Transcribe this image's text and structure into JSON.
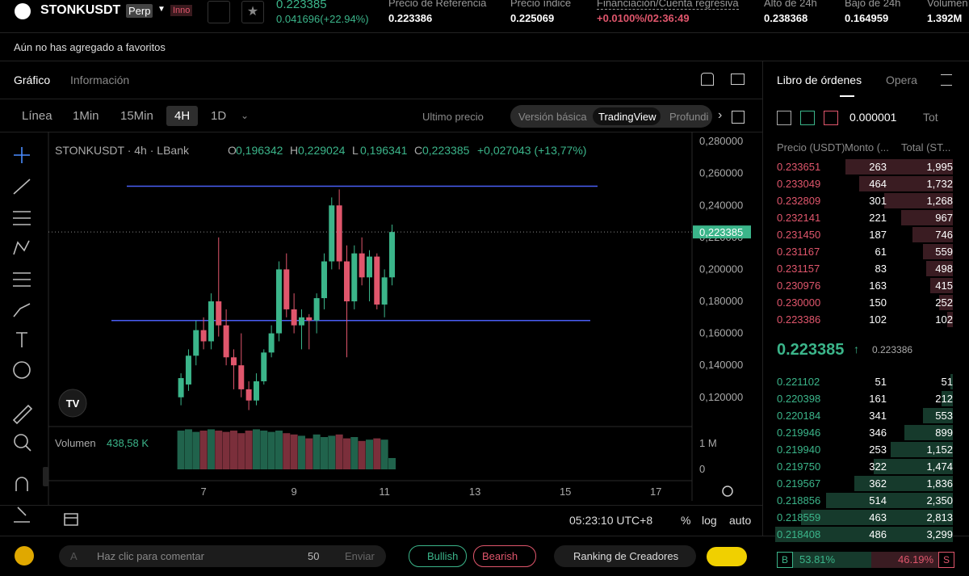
{
  "header": {
    "symbol": "STONKUSDT",
    "badge": "Perp",
    "tag": "Inno",
    "last_price": "0.223385",
    "change": "0.041696(+22.94%)",
    "stats": [
      {
        "label": "Precio de Referencia",
        "value": "0.223386"
      },
      {
        "label": "Precio índice",
        "value": "0.225069"
      },
      {
        "label": "Financiación/Cuenta regresiva",
        "value": "+0.0100%/02:36:49"
      },
      {
        "label": "Alto de 24h",
        "value": "0.238368"
      },
      {
        "label": "Bajo de 24h",
        "value": "0.164959"
      },
      {
        "label": "Volumen",
        "value": "1.392M"
      }
    ]
  },
  "favorites_note": "Aún no has agregado a favoritos",
  "tabs": [
    "Gráfico",
    "Información"
  ],
  "intervals": [
    "Línea",
    "1Min",
    "15Min",
    "4H",
    "1D"
  ],
  "price_type": "Ultimo precio",
  "view_modes": [
    "Versión básica",
    "TradingView",
    "Profundi"
  ],
  "chart_data": {
    "type": "candlestick",
    "title": "STONKUSDT · 4h · LBank",
    "ohlc_legend": [
      {
        "key": "O",
        "value": "0,196342"
      },
      {
        "key": "H",
        "value": "0,229024"
      },
      {
        "key": "L",
        "value": "0,196341"
      },
      {
        "key": "C",
        "value": "0,223385"
      }
    ],
    "change_label": "+0,027043 (+13,77%)",
    "x": [
      6.5,
      6.667,
      6.833,
      7,
      7.167,
      7.333,
      7.5,
      7.667,
      7.833,
      8,
      8.167,
      8.333,
      8.5,
      8.667,
      8.833,
      9,
      9.167,
      9.333,
      9.5,
      9.667,
      9.833,
      10,
      10.167,
      10.333,
      10.5,
      10.667,
      10.833,
      11,
      11.167
    ],
    "open": [
      0.12,
      0.128,
      0.146,
      0.162,
      0.155,
      0.18,
      0.165,
      0.145,
      0.14,
      0.125,
      0.118,
      0.13,
      0.148,
      0.16,
      0.2,
      0.175,
      0.165,
      0.17,
      0.168,
      0.182,
      0.205,
      0.24,
      0.205,
      0.18,
      0.21,
      0.195,
      0.208,
      0.178,
      0.195
    ],
    "high": [
      0.135,
      0.15,
      0.168,
      0.17,
      0.185,
      0.22,
      0.175,
      0.15,
      0.16,
      0.13,
      0.135,
      0.15,
      0.165,
      0.205,
      0.21,
      0.185,
      0.175,
      0.172,
      0.185,
      0.21,
      0.245,
      0.25,
      0.215,
      0.215,
      0.22,
      0.212,
      0.21,
      0.2,
      0.228
    ],
    "low": [
      0.115,
      0.124,
      0.14,
      0.15,
      0.15,
      0.158,
      0.14,
      0.125,
      0.12,
      0.112,
      0.115,
      0.128,
      0.145,
      0.155,
      0.17,
      0.16,
      0.15,
      0.15,
      0.16,
      0.175,
      0.2,
      0.2,
      0.145,
      0.175,
      0.19,
      0.18,
      0.175,
      0.17,
      0.19
    ],
    "close": [
      0.132,
      0.146,
      0.162,
      0.155,
      0.18,
      0.165,
      0.145,
      0.14,
      0.125,
      0.118,
      0.13,
      0.148,
      0.16,
      0.2,
      0.175,
      0.165,
      0.17,
      0.168,
      0.182,
      0.205,
      0.24,
      0.205,
      0.18,
      0.21,
      0.195,
      0.208,
      0.178,
      0.195,
      0.223385
    ],
    "volume": [
      1500000,
      1550000,
      1450000,
      1500000,
      1550000,
      1500000,
      1450000,
      1500000,
      1400000,
      1500000,
      1550000,
      1500000,
      1450000,
      1500000,
      1400000,
      1350000,
      1300000,
      1200000,
      1350000,
      1250000,
      1300000,
      1350000,
      1200000,
      1250000,
      1100000,
      1150000,
      1200000,
      1150000,
      438580
    ],
    "volume_title": "Volumen",
    "volume_label": "438,58 K",
    "xlim": [
      3.57,
      17.8
    ],
    "xticks": [
      7,
      9,
      11,
      13,
      15,
      17
    ],
    "ylim": [
      0.1017,
      0.2851
    ],
    "yticks": [
      {
        "value": 0.12,
        "label": "0,120000"
      },
      {
        "value": 0.14,
        "label": "0,140000"
      },
      {
        "value": 0.16,
        "label": "0,160000"
      },
      {
        "value": 0.18,
        "label": "0,180000"
      },
      {
        "value": 0.2,
        "label": "0,200000"
      },
      {
        "value": 0.22,
        "label": "0,220000"
      },
      {
        "value": 0.24,
        "label": "0,240000"
      },
      {
        "value": 0.26,
        "label": "0,260000"
      },
      {
        "value": 0.28,
        "label": "0,280000"
      }
    ],
    "vlim": [
      0,
      1594000
    ],
    "vticks": [
      {
        "value": 1000000,
        "label": "1 M"
      },
      0
    ],
    "last_label": "0,223385",
    "hlines": [
      0.252,
      0.168
    ],
    "up_color": "#3bb58a",
    "down_color": "#e0566c",
    "line_color": "#4a5ef5"
  },
  "chart_footer": {
    "time": "05:23:10 UTC+8",
    "options": [
      "%",
      "log",
      "auto"
    ]
  },
  "comment_bar": {
    "placeholder": "Haz clic para comentar",
    "count": "50",
    "send": "Enviar",
    "bullish": "Bullish",
    "bearish": "Bearish",
    "ranking": "Ranking de Creadores"
  },
  "orderbook": {
    "title": "Libro de órdenes",
    "tab2": "Opera",
    "precision": "0.000001",
    "tot": "Tot",
    "headers": [
      "Precio (USDT)",
      "Monto (...",
      "Total (ST..."
    ],
    "asks": [
      {
        "price": "0.233651",
        "amount": 263,
        "total": 1995,
        "total_label": "1,995"
      },
      {
        "price": "0.233049",
        "amount": 464,
        "total": 1732,
        "total_label": "1,732"
      },
      {
        "price": "0.232809",
        "amount": 301,
        "total": 1268,
        "total_label": "1,268"
      },
      {
        "price": "0.232141",
        "amount": 221,
        "total": 967
      },
      {
        "price": "0.231450",
        "amount": 187,
        "total": 746
      },
      {
        "price": "0.231167",
        "amount": 61,
        "total": 559
      },
      {
        "price": "0.231157",
        "amount": 83,
        "total": 498
      },
      {
        "price": "0.230976",
        "amount": 163,
        "total": 415
      },
      {
        "price": "0.230000",
        "amount": 150,
        "total": 252
      },
      {
        "price": "0.223386",
        "amount": 102,
        "total": 102
      }
    ],
    "mid_price": "0.223385",
    "mid_ref": "0.223386",
    "bids": [
      {
        "price": "0.221102",
        "amount": 51,
        "total": 51
      },
      {
        "price": "0.220398",
        "amount": 161,
        "total": 212
      },
      {
        "price": "0.220184",
        "amount": 341,
        "total": 553
      },
      {
        "price": "0.219946",
        "amount": 346,
        "total": 899
      },
      {
        "price": "0.219940",
        "amount": 253,
        "total": 1152,
        "total_label": "1,152"
      },
      {
        "price": "0.219750",
        "amount": 322,
        "total": 1474,
        "total_label": "1,474"
      },
      {
        "price": "0.219567",
        "amount": 362,
        "total": 1836,
        "total_label": "1,836"
      },
      {
        "price": "0.218856",
        "amount": 514,
        "total": 2350,
        "total_label": "2,350"
      },
      {
        "price": "0.218559",
        "amount": 463,
        "total": 2813,
        "total_label": "2,813"
      },
      {
        "price": "0.218408",
        "amount": 486,
        "total": 3299,
        "total_label": "3,299"
      }
    ],
    "depth_max": 3299,
    "buy_key": "B",
    "buy": 53.81,
    "buy_label": "53.81%",
    "sell": 46.19,
    "sell_label": "46.19%",
    "sell_key": "S"
  }
}
